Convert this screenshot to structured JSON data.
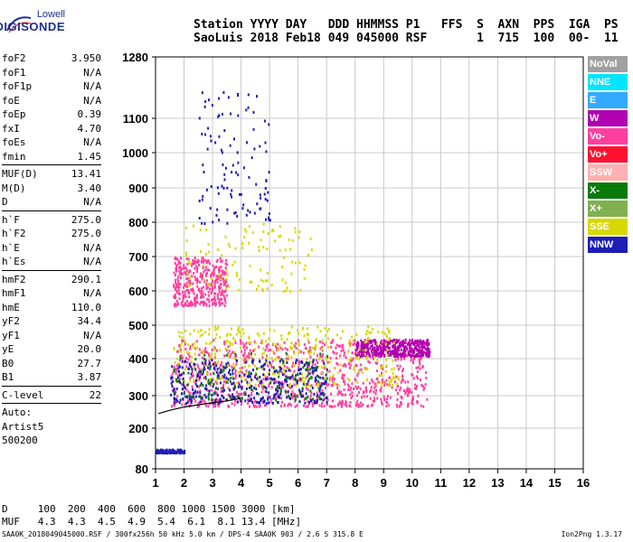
{
  "logo": {
    "line1": "Lowell",
    "line2": "DIGISONDE"
  },
  "header": {
    "line1": "Station YYYY DAY   DDD HHMMSS P1   FFS  S  AXN  PPS  IGA  PS",
    "line2": "SaoLuis 2018 Feb18 049 045000 RSF       1  715  100  00-  11"
  },
  "params": {
    "group1": [
      [
        "foF2",
        "3.950"
      ],
      [
        "foF1",
        "N/A"
      ],
      [
        "foF1p",
        "N/A"
      ],
      [
        "foE",
        "N/A"
      ],
      [
        "foEp",
        "0.39"
      ],
      [
        "fxI",
        "4.70"
      ],
      [
        "foEs",
        "N/A"
      ],
      [
        "fmin",
        "1.45"
      ]
    ],
    "group2": [
      [
        "MUF(D)",
        "13.41"
      ],
      [
        "M(D)",
        "3.40"
      ],
      [
        "D",
        "N/A"
      ]
    ],
    "group3": [
      [
        "h`F",
        "275.0"
      ],
      [
        "h`F2",
        "275.0"
      ],
      [
        "h`E",
        "N/A"
      ],
      [
        "h`Es",
        "N/A"
      ]
    ],
    "group4": [
      [
        "hmF2",
        "290.1"
      ],
      [
        "hmF1",
        "N/A"
      ],
      [
        "hmE",
        "110.0"
      ],
      [
        "yF2",
        "34.4"
      ],
      [
        "yF1",
        "N/A"
      ],
      [
        "yE",
        "20.0"
      ],
      [
        "B0",
        "27.7"
      ],
      [
        "B1",
        "3.87"
      ]
    ],
    "group5": [
      [
        "C-level",
        "22"
      ]
    ]
  },
  "auto": {
    "l1": "Auto:",
    "l2": "Artist5",
    "l3": "500200"
  },
  "legend": [
    {
      "label": "NoVal",
      "color": "#a0a0a0"
    },
    {
      "label": "NNE",
      "color": "#00e5ff"
    },
    {
      "label": "E",
      "color": "#33aaff"
    },
    {
      "label": "W",
      "color": "#b000b0"
    },
    {
      "label": "Vo-",
      "color": "#ff3fa0"
    },
    {
      "label": "Vo+",
      "color": "#ff1030"
    },
    {
      "label": "SSW",
      "color": "#ffb0b0"
    },
    {
      "label": "X-",
      "color": "#0a7a0a"
    },
    {
      "label": "X+",
      "color": "#80b050"
    },
    {
      "label": "SSE",
      "color": "#d8d800"
    },
    {
      "label": "NNW",
      "color": "#1e1eb4"
    }
  ],
  "footer": {
    "d_row": "D     100  200  400  600  800 1000 1500 3000 [km]",
    "muf_row": "MUF   4.3  4.3  4.5  4.9  5.4  6.1  8.1 13.4 [MHz]",
    "file_info": "SAA0K_2018049045000.RSF / 300fx256h 50 kHz 5.0 km / DPS-4 SAA0K 903 / 2.6 S 315.8 E",
    "version": "Ion2Png 1.3.17"
  },
  "chart_data": {
    "type": "scatter",
    "x_ticks": [
      "1",
      "2",
      "3",
      "4",
      "5",
      "6",
      "7",
      "8",
      "9",
      "10",
      "11",
      "12",
      "13",
      "14",
      "15",
      "16"
    ],
    "y_ticks": [
      "80",
      "200",
      "300",
      "400",
      "500",
      "600",
      "700",
      "800",
      "900",
      "1000",
      "1100",
      "1280"
    ],
    "xlim": [
      1,
      16
    ],
    "ylim": [
      80,
      1280
    ],
    "grid": true,
    "clusters": [
      {
        "name": "F-trace band",
        "color": "#ff3fa0",
        "x": [
          1.5,
          10.5
        ],
        "y": [
          270,
          460
        ],
        "density": "high"
      },
      {
        "name": "F-trace band",
        "color": "#b000b0",
        "x": [
          8.0,
          10.6
        ],
        "y": [
          410,
          460
        ],
        "density": "medium"
      },
      {
        "name": "F-trace band",
        "color": "#d8d800",
        "x": [
          1.6,
          9.5
        ],
        "y": [
          330,
          500
        ],
        "density": "medium"
      },
      {
        "name": "F-trace band",
        "color": "#1e1eb4",
        "x": [
          1.5,
          7.0
        ],
        "y": [
          280,
          400
        ],
        "density": "medium"
      },
      {
        "name": "F-trace band",
        "color": "#0a7a0a",
        "x": [
          1.6,
          7.0
        ],
        "y": [
          290,
          420
        ],
        "density": "low"
      },
      {
        "name": "multi-hop",
        "color": "#ff3fa0",
        "x": [
          1.6,
          3.5
        ],
        "y": [
          560,
          700
        ],
        "density": "medium"
      },
      {
        "name": "multi-hop",
        "color": "#d8d800",
        "x": [
          2.0,
          6.5
        ],
        "y": [
          600,
          800
        ],
        "density": "low"
      },
      {
        "name": "high echoes",
        "color": "#1e1eb4",
        "x": [
          2.5,
          5.0
        ],
        "y": [
          800,
          1180
        ],
        "density": "low"
      },
      {
        "name": "low echoes",
        "color": "#1e1eb4",
        "x": [
          1.0,
          2.0
        ],
        "y": [
          130,
          140
        ],
        "density": "low"
      }
    ],
    "profile_curve": [
      [
        1.1,
        245
      ],
      [
        1.5,
        255
      ],
      [
        2.0,
        265
      ],
      [
        2.5,
        272
      ],
      [
        3.0,
        278
      ],
      [
        3.5,
        284
      ],
      [
        4.0,
        292
      ]
    ]
  }
}
